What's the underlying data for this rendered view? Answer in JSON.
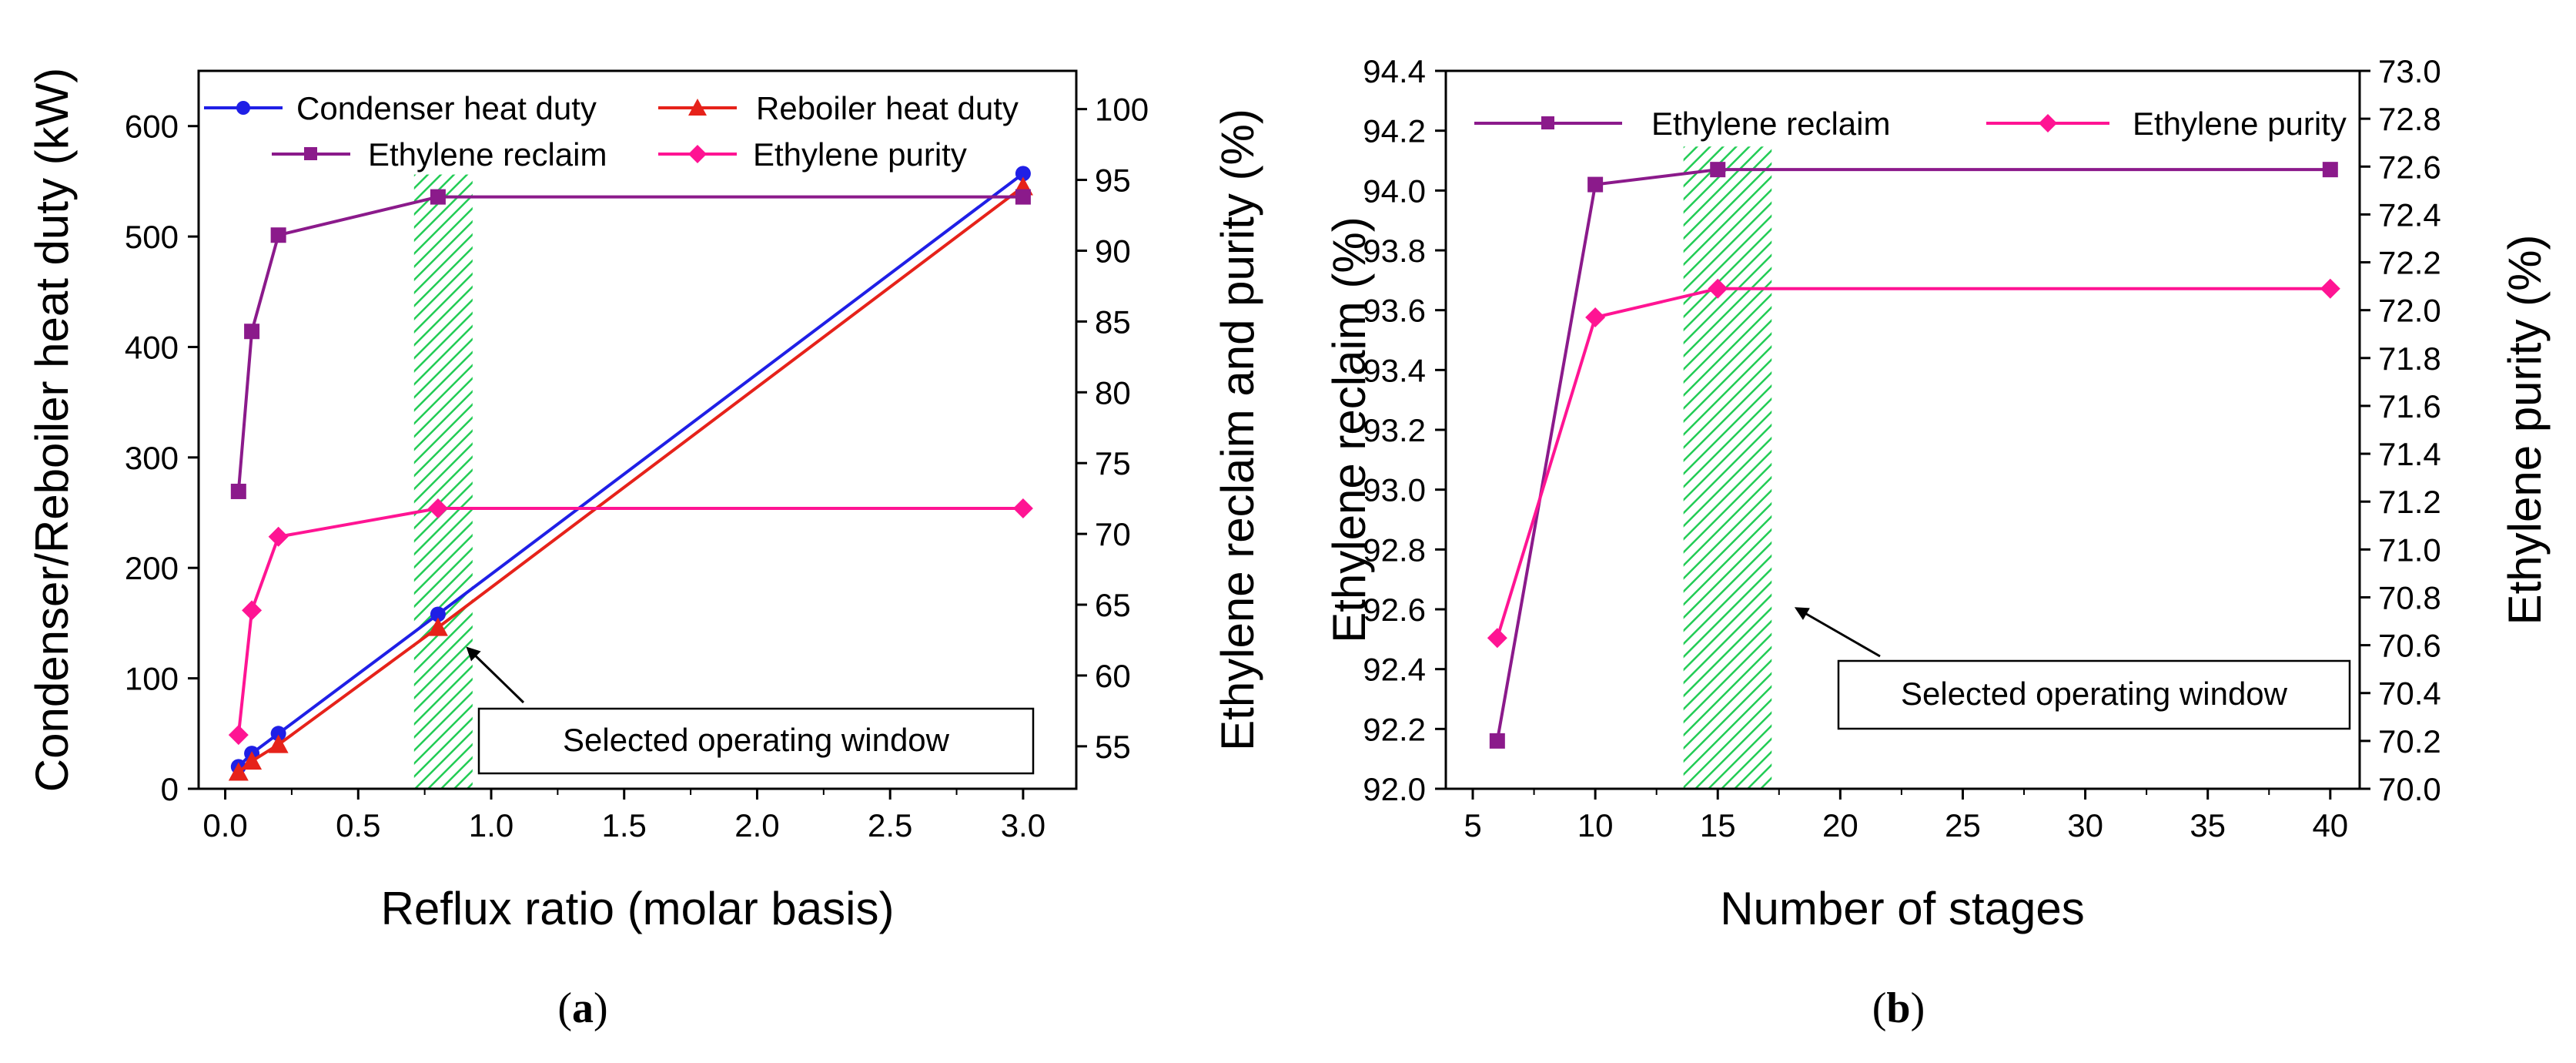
{
  "figure": {
    "caption_a": "(a)",
    "caption_b": "(b)"
  },
  "colors": {
    "condenser": "#1f1fe6",
    "reboiler": "#e6221a",
    "reclaim": "#8b1a8b",
    "purity": "#ff1493",
    "window": "#22cc55",
    "axis": "#000000"
  },
  "chart_data": [
    {
      "id": "a",
      "type": "line",
      "xlabel": "Reflux ratio (molar basis)",
      "ylabel_left": "Condenser/Reboiler heat duty (kW)",
      "ylabel_right": "Ethylene reclaim and purity (%)",
      "xlim": [
        -0.1,
        3.2
      ],
      "ylim_left": [
        0,
        650
      ],
      "ylim_right": [
        52,
        102.7
      ],
      "xticks": [
        "0.0",
        "0.5",
        "1.0",
        "1.5",
        "2.0",
        "2.5",
        "3.0"
      ],
      "xtick_values": [
        0,
        0.5,
        1,
        1.5,
        2,
        2.5,
        3
      ],
      "yticks_left": [
        "0",
        "100",
        "200",
        "300",
        "400",
        "500",
        "600"
      ],
      "ytick_values_left": [
        0,
        100,
        200,
        300,
        400,
        500,
        600
      ],
      "yticks_right": [
        "55",
        "60",
        "65",
        "70",
        "75",
        "80",
        "85",
        "90",
        "95",
        "100"
      ],
      "ytick_values_right": [
        55,
        60,
        65,
        70,
        75,
        80,
        85,
        90,
        95,
        100
      ],
      "highlight_window": [
        0.71,
        0.93
      ],
      "annotation": "Selected operating window",
      "series": [
        {
          "name": "Condenser heat duty",
          "axis": "left",
          "marker": "circle",
          "color_key": "condenser",
          "x": [
            0.05,
            0.1,
            0.2,
            0.8,
            3.0
          ],
          "y": [
            20,
            32,
            50,
            158,
            557
          ]
        },
        {
          "name": "Reboiler heat duty",
          "axis": "left",
          "marker": "triangle",
          "color_key": "reboiler",
          "x": [
            0.05,
            0.1,
            0.2,
            0.8,
            3.0
          ],
          "y": [
            15,
            25,
            40,
            146,
            545
          ]
        },
        {
          "name": "Ethylene reclaim",
          "axis": "right",
          "marker": "square",
          "color_key": "reclaim",
          "x": [
            0.05,
            0.1,
            0.2,
            0.8,
            3.0
          ],
          "y": [
            73.0,
            84.3,
            91.1,
            93.8,
            93.8
          ]
        },
        {
          "name": "Ethylene purity",
          "axis": "right",
          "marker": "diamond",
          "color_key": "purity",
          "x": [
            0.05,
            0.1,
            0.2,
            0.8,
            3.0
          ],
          "y": [
            55.8,
            64.6,
            69.8,
            71.8,
            71.8
          ]
        }
      ]
    },
    {
      "id": "b",
      "type": "line",
      "xlabel": "Number of stages",
      "ylabel_left": "Ethylene reclaim (%)",
      "ylabel_right": "Ethylene purity (%)",
      "xlim": [
        3.9,
        41.2
      ],
      "ylim_left": [
        92.0,
        94.4
      ],
      "ylim_right": [
        70.0,
        73.0
      ],
      "xticks": [
        "5",
        "10",
        "15",
        "20",
        "25",
        "30",
        "35",
        "40"
      ],
      "xtick_values": [
        5,
        10,
        15,
        20,
        25,
        30,
        35,
        40
      ],
      "yticks_left": [
        "92.0",
        "92.2",
        "92.4",
        "92.6",
        "92.8",
        "93.0",
        "93.2",
        "93.4",
        "93.6",
        "93.8",
        "94.0",
        "94.2",
        "94.4"
      ],
      "ytick_values_left": [
        92.0,
        92.2,
        92.4,
        92.6,
        92.8,
        93.0,
        93.2,
        93.4,
        93.6,
        93.8,
        94.0,
        94.2,
        94.4
      ],
      "yticks_right": [
        "70.0",
        "70.2",
        "70.4",
        "70.6",
        "70.8",
        "71.0",
        "71.2",
        "71.4",
        "71.6",
        "71.8",
        "72.0",
        "72.2",
        "72.4",
        "72.6",
        "72.8",
        "73.0"
      ],
      "ytick_values_right": [
        70.0,
        70.2,
        70.4,
        70.6,
        70.8,
        71.0,
        71.2,
        71.4,
        71.6,
        71.8,
        72.0,
        72.2,
        72.4,
        72.6,
        72.8,
        73.0
      ],
      "highlight_window": [
        13.6,
        17.2
      ],
      "annotation": "Selected operating window",
      "series": [
        {
          "name": "Ethylene reclaim",
          "axis": "left",
          "marker": "square",
          "color_key": "reclaim",
          "x": [
            6,
            10,
            15,
            40
          ],
          "y": [
            92.16,
            94.02,
            94.07,
            94.07
          ]
        },
        {
          "name": "Ethylene purity",
          "axis": "right",
          "marker": "diamond",
          "color_key": "purity",
          "x": [
            6,
            10,
            15,
            40
          ],
          "y": [
            70.63,
            71.97,
            72.09,
            72.09
          ]
        }
      ]
    }
  ]
}
